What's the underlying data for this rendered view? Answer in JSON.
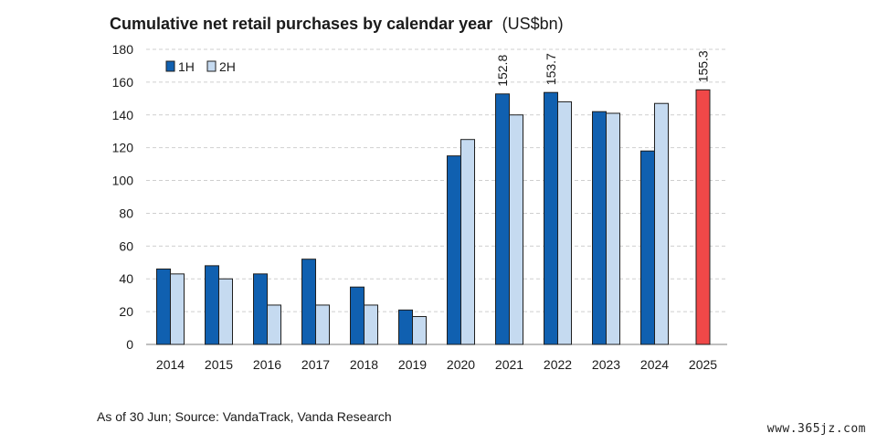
{
  "chart_data": {
    "type": "bar",
    "title": "Cumulative net retail purchases by calendar year",
    "title_unit": "(US$bn)",
    "categories": [
      "2014",
      "2015",
      "2016",
      "2017",
      "2018",
      "2019",
      "2020",
      "2021",
      "2022",
      "2023",
      "2024",
      "2025"
    ],
    "series": [
      {
        "name": "1H",
        "color": "#1060b0",
        "values": [
          46,
          48,
          43,
          52,
          35,
          21,
          115,
          152.8,
          153.7,
          142,
          118,
          155.3
        ]
      },
      {
        "name": "2H",
        "color": "#c5daf0",
        "values": [
          43,
          40,
          24,
          24,
          24,
          17,
          125,
          140,
          148,
          141,
          147,
          null
        ]
      }
    ],
    "highlight": {
      "category": "2025",
      "color": "#f04848"
    },
    "data_labels": [
      {
        "category": "2021",
        "series": "1H",
        "text": "152.8"
      },
      {
        "category": "2022",
        "series": "1H",
        "text": "153.7"
      },
      {
        "category": "2025",
        "series": "1H",
        "text": "155.3"
      }
    ],
    "ylim": [
      0,
      180
    ],
    "yticks": [
      0,
      20,
      40,
      60,
      80,
      100,
      120,
      140,
      160,
      180
    ],
    "xlabel": "",
    "ylabel": "",
    "grid": true,
    "legend": "top-left"
  },
  "footer": {
    "source": "As of 30 Jun; Source: VandaTrack, Vanda Research",
    "watermark": "www.365jz.com"
  }
}
